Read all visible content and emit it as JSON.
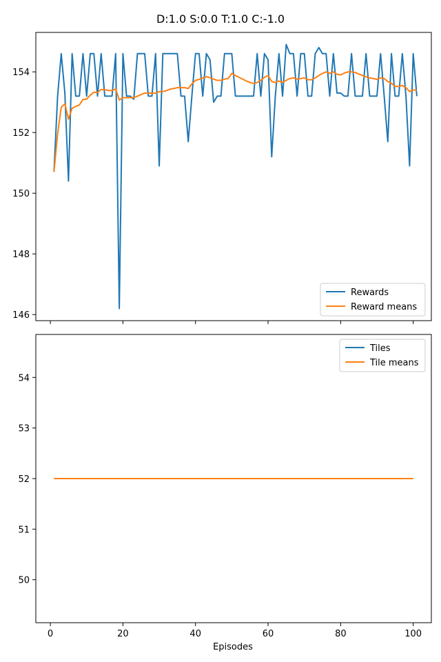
{
  "figure_title": "D:1.0 S:0.0 T:1.0 C:-1.0",
  "colors": {
    "series_blue": "#1f77b4",
    "series_orange": "#ff7f0e",
    "axes": "#000000",
    "legend_border": "#cccccc"
  },
  "chart_data": [
    {
      "type": "line",
      "xlabel": "",
      "ylabel": "",
      "xlim": [
        -4,
        105
      ],
      "ylim": [
        145.8,
        155.3
      ],
      "xticks": [
        0,
        20,
        40,
        60,
        80,
        100
      ],
      "show_xtick_labels": false,
      "yticks": [
        146,
        148,
        150,
        152,
        154
      ],
      "ytick_labels": [
        "146",
        "148",
        "150",
        "152",
        "154"
      ],
      "grid": false,
      "legend_placement": "lower right",
      "x_start": 1,
      "x_step": 1,
      "series": [
        {
          "name": "Rewards",
          "color": "#1f77b4",
          "values": [
            150.7,
            153.2,
            154.6,
            153.3,
            150.4,
            154.6,
            153.2,
            153.2,
            154.6,
            153.2,
            154.6,
            154.6,
            153.2,
            154.6,
            153.2,
            153.2,
            153.2,
            154.6,
            146.2,
            154.6,
            153.2,
            153.2,
            153.1,
            154.6,
            154.6,
            154.6,
            153.2,
            153.2,
            154.6,
            150.9,
            154.6,
            154.6,
            154.6,
            154.6,
            154.6,
            153.2,
            153.2,
            151.7,
            153.2,
            154.6,
            154.6,
            153.2,
            154.6,
            154.4,
            153.0,
            153.2,
            153.2,
            154.6,
            154.6,
            154.6,
            153.2,
            153.2,
            153.2,
            153.2,
            153.2,
            153.2,
            154.6,
            153.2,
            154.6,
            154.4,
            151.2,
            153.2,
            154.6,
            153.2,
            154.9,
            154.6,
            154.6,
            153.2,
            154.6,
            154.6,
            153.2,
            153.2,
            154.6,
            154.8,
            154.6,
            154.6,
            153.2,
            154.6,
            153.3,
            153.3,
            153.2,
            153.2,
            154.6,
            153.2,
            153.2,
            153.2,
            154.6,
            153.2,
            153.2,
            153.2,
            154.6,
            153.2,
            151.7,
            154.6,
            153.2,
            153.2,
            154.6,
            153.2,
            150.9,
            154.6,
            153.2
          ]
        },
        {
          "name": "Reward means",
          "color": "#ff7f0e",
          "values": [
            150.7,
            151.95,
            152.83,
            152.95,
            152.44,
            152.8,
            152.86,
            152.91,
            153.09,
            153.1,
            153.23,
            153.33,
            153.32,
            153.42,
            153.41,
            153.39,
            153.38,
            153.44,
            153.07,
            153.15,
            153.15,
            153.15,
            153.15,
            153.2,
            153.25,
            153.3,
            153.3,
            153.3,
            153.3,
            153.35,
            153.35,
            153.38,
            153.43,
            153.45,
            153.48,
            153.48,
            153.48,
            153.45,
            153.6,
            153.72,
            153.75,
            153.8,
            153.84,
            153.81,
            153.76,
            153.72,
            153.72,
            153.76,
            153.78,
            153.95,
            153.88,
            153.82,
            153.76,
            153.7,
            153.65,
            153.62,
            153.65,
            153.72,
            153.82,
            153.88,
            153.68,
            153.65,
            153.7,
            153.65,
            153.72,
            153.78,
            153.8,
            153.76,
            153.78,
            153.8,
            153.74,
            153.74,
            153.8,
            153.88,
            153.95,
            154.0,
            153.95,
            154.0,
            153.92,
            153.9,
            153.96,
            154.0,
            154.0,
            153.98,
            153.93,
            153.88,
            153.84,
            153.8,
            153.78,
            153.75,
            153.8,
            153.78,
            153.68,
            153.62,
            153.52,
            153.52,
            153.55,
            153.48,
            153.35,
            153.4,
            153.4
          ]
        }
      ]
    },
    {
      "type": "line",
      "xlabel": "Episodes",
      "ylabel": "",
      "xlim": [
        -4,
        105
      ],
      "ylim": [
        49.15,
        54.85
      ],
      "xticks": [
        0,
        20,
        40,
        60,
        80,
        100
      ],
      "xtick_labels": [
        "0",
        "20",
        "40",
        "60",
        "80",
        "100"
      ],
      "show_xtick_labels": true,
      "yticks": [
        50,
        51,
        52,
        53,
        54
      ],
      "ytick_labels": [
        "50",
        "51",
        "52",
        "53",
        "54"
      ],
      "grid": false,
      "legend_placement": "upper right",
      "x_start": 1,
      "x_step": 1,
      "series": [
        {
          "name": "Tiles",
          "color": "#1f77b4",
          "constant": 52,
          "count": 100
        },
        {
          "name": "Tile means",
          "color": "#ff7f0e",
          "constant": 52,
          "count": 100
        }
      ]
    }
  ]
}
